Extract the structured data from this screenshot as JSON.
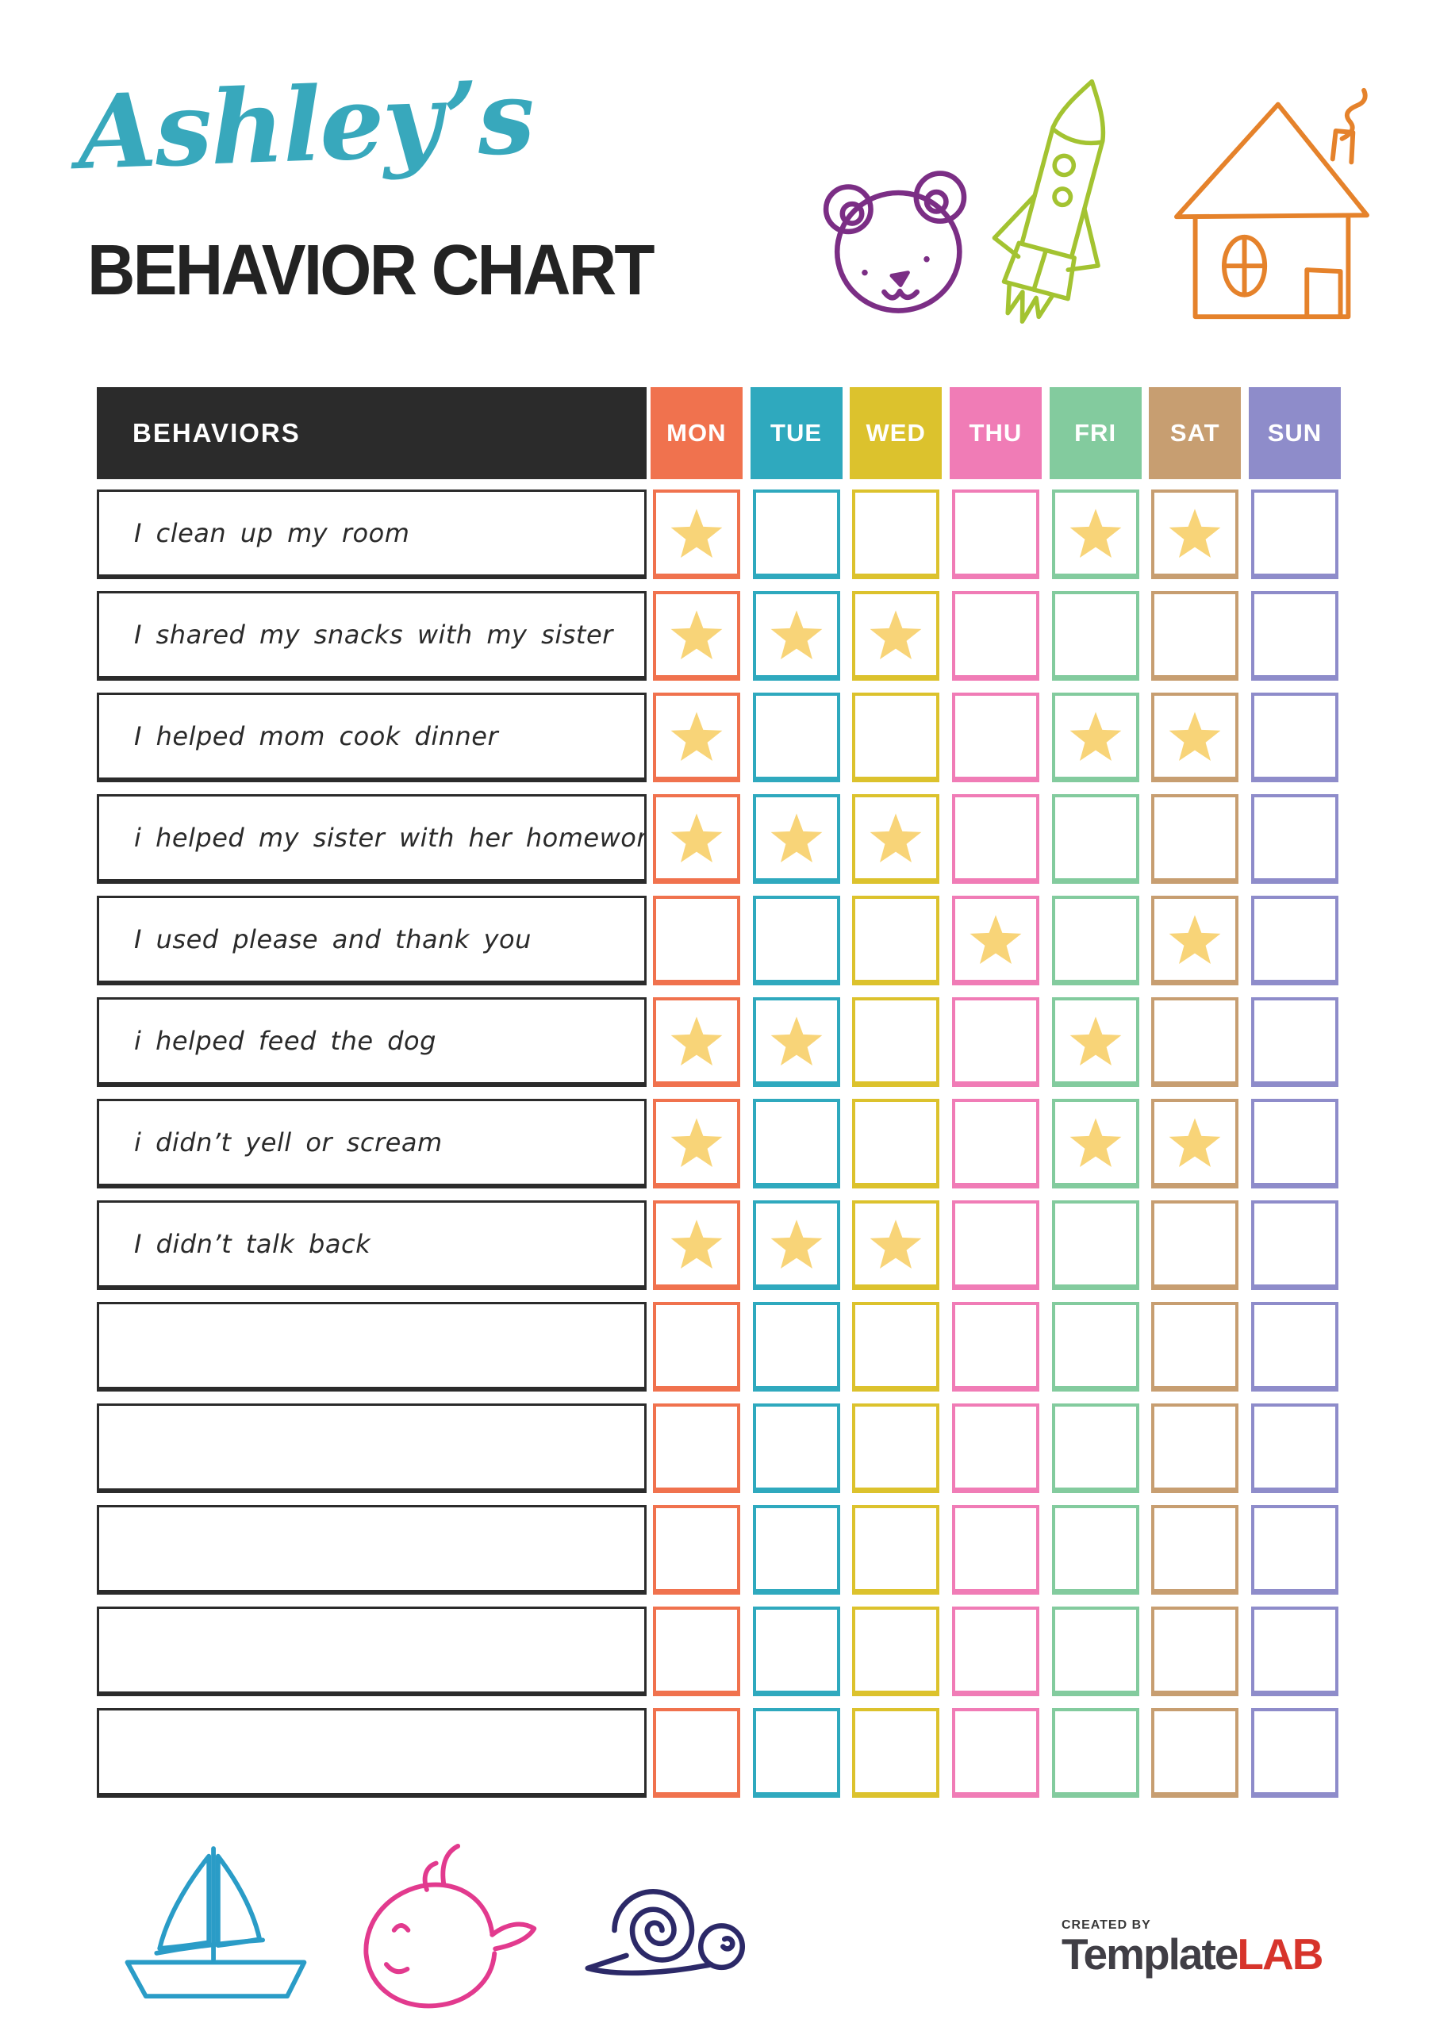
{
  "header": {
    "name": "Ashley’s",
    "title": "BEHAVIOR CHART"
  },
  "doodles": {
    "top": [
      "bear",
      "rocket",
      "house"
    ],
    "bottom": [
      "sailboat",
      "whale",
      "snail"
    ]
  },
  "table": {
    "behaviors_header": "BEHAVIORS",
    "days": [
      {
        "label": "MON",
        "color": "#F0724E"
      },
      {
        "label": "TUE",
        "color": "#2FA9BE"
      },
      {
        "label": "WED",
        "color": "#DCC22D"
      },
      {
        "label": "THU",
        "color": "#F07CB6"
      },
      {
        "label": "FRI",
        "color": "#83CB9E"
      },
      {
        "label": "SAT",
        "color": "#C79E71"
      },
      {
        "label": "SUN",
        "color": "#8E8CCA"
      }
    ],
    "star_color": "#F8D478",
    "rows": [
      {
        "behavior": "I clean up my room",
        "stars": [
          1,
          0,
          0,
          0,
          1,
          1,
          0
        ]
      },
      {
        "behavior": "I shared my snacks with my sister",
        "stars": [
          1,
          1,
          1,
          0,
          0,
          0,
          0
        ]
      },
      {
        "behavior": "I helped mom cook dinner",
        "stars": [
          1,
          0,
          0,
          0,
          1,
          1,
          0
        ]
      },
      {
        "behavior": "i helped my sister with her homework",
        "stars": [
          1,
          1,
          1,
          0,
          0,
          0,
          0
        ]
      },
      {
        "behavior": "I used please and thank you",
        "stars": [
          0,
          0,
          0,
          1,
          0,
          1,
          0
        ]
      },
      {
        "behavior": "i helped feed the dog",
        "stars": [
          1,
          1,
          0,
          0,
          1,
          0,
          0
        ]
      },
      {
        "behavior": "i didn’t yell or scream",
        "stars": [
          1,
          0,
          0,
          0,
          1,
          1,
          0
        ]
      },
      {
        "behavior": "I didn’t talk back",
        "stars": [
          1,
          1,
          1,
          0,
          0,
          0,
          0
        ]
      },
      {
        "behavior": "",
        "stars": [
          0,
          0,
          0,
          0,
          0,
          0,
          0
        ]
      },
      {
        "behavior": "",
        "stars": [
          0,
          0,
          0,
          0,
          0,
          0,
          0
        ]
      },
      {
        "behavior": "",
        "stars": [
          0,
          0,
          0,
          0,
          0,
          0,
          0
        ]
      },
      {
        "behavior": "",
        "stars": [
          0,
          0,
          0,
          0,
          0,
          0,
          0
        ]
      },
      {
        "behavior": "",
        "stars": [
          0,
          0,
          0,
          0,
          0,
          0,
          0
        ]
      }
    ]
  },
  "footer": {
    "created_by": "CREATED BY",
    "brand_primary": "Template",
    "brand_accent": "LAB"
  },
  "colors": {
    "name_color": "#38A8BC",
    "title_color": "#232323",
    "header_bg": "#2B2B2B",
    "brand_accent_color": "#D7342B",
    "bear": "#7B2E85",
    "rocket": "#A3C331",
    "house": "#E5822B",
    "sailboat": "#2A9CC7",
    "whale": "#E23A8E",
    "snail": "#2C2968"
  }
}
